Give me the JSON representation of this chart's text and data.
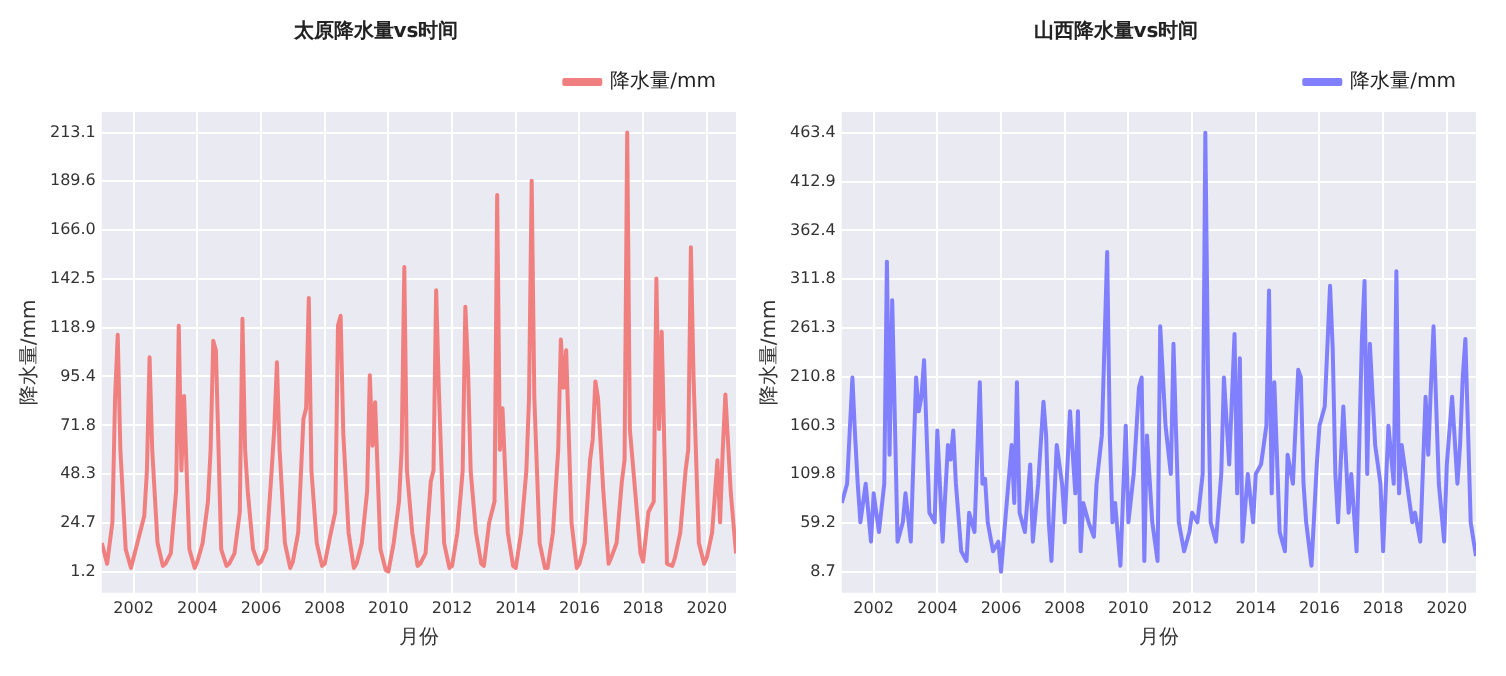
{
  "chart_data": [
    {
      "type": "line",
      "title": "太原降水量vs时间",
      "xlabel": "月份",
      "ylabel": "降水量/mm",
      "grid": true,
      "legend": "top right",
      "xlim": [
        "2001-01",
        "2020-12"
      ],
      "xticks": [
        "2002",
        "2004",
        "2006",
        "2008",
        "2010",
        "2012",
        "2014",
        "2016",
        "2018",
        "2020"
      ],
      "ylim": [
        -9,
        223
      ],
      "yticks": [
        1.2,
        24.7,
        48.3,
        71.8,
        95.4,
        118.9,
        142.5,
        {
          "value": 166,
          "label": "166.0"
        },
        189.6,
        213.1
      ],
      "x": [
        "2001-01",
        "2001-03",
        "2001-05",
        "2001-06",
        "2001-07",
        "2001-08",
        "2001-10",
        "2001-12",
        "2002-01",
        "2002-03",
        "2002-05",
        "2002-06",
        "2002-07",
        "2002-08",
        "2002-10",
        "2002-12",
        "2003-01",
        "2003-03",
        "2003-05",
        "2003-06",
        "2003-07",
        "2003-08",
        "2003-10",
        "2003-12",
        "2004-01",
        "2004-03",
        "2004-05",
        "2004-06",
        "2004-07",
        "2004-08",
        "2004-10",
        "2004-12",
        "2005-01",
        "2005-03",
        "2005-05",
        "2005-06",
        "2005-07",
        "2005-08",
        "2005-10",
        "2005-12",
        "2006-01",
        "2006-03",
        "2006-05",
        "2006-06",
        "2006-07",
        "2006-08",
        "2006-10",
        "2006-12",
        "2007-01",
        "2007-03",
        "2007-05",
        "2007-06",
        "2007-07",
        "2007-08",
        "2007-10",
        "2007-12",
        "2008-01",
        "2008-03",
        "2008-05",
        "2008-06",
        "2008-07",
        "2008-08",
        "2008-10",
        "2008-12",
        "2009-01",
        "2009-03",
        "2009-05",
        "2009-06",
        "2009-07",
        "2009-08",
        "2009-10",
        "2009-12",
        "2010-01",
        "2010-03",
        "2010-05",
        "2010-06",
        "2010-07",
        "2010-08",
        "2010-10",
        "2010-12",
        "2011-01",
        "2011-03",
        "2011-05",
        "2011-06",
        "2011-07",
        "2011-08",
        "2011-10",
        "2011-12",
        "2012-01",
        "2012-03",
        "2012-05",
        "2012-06",
        "2012-07",
        "2012-08",
        "2012-10",
        "2012-12",
        "2013-01",
        "2013-03",
        "2013-05",
        "2013-06",
        "2013-07",
        "2013-08",
        "2013-10",
        "2013-12",
        "2014-01",
        "2014-03",
        "2014-05",
        "2014-06",
        "2014-07",
        "2014-08",
        "2014-10",
        "2014-12",
        "2015-01",
        "2015-03",
        "2015-05",
        "2015-06",
        "2015-07",
        "2015-08",
        "2015-10",
        "2015-12",
        "2016-01",
        "2016-03",
        "2016-05",
        "2016-06",
        "2016-07",
        "2016-08",
        "2016-10",
        "2016-12",
        "2017-01",
        "2017-03",
        "2017-05",
        "2017-06",
        "2017-07",
        "2017-08",
        "2017-10",
        "2017-12",
        "2018-01",
        "2018-03",
        "2018-05",
        "2018-06",
        "2018-07",
        "2018-08",
        "2018-10",
        "2018-12",
        "2019-01",
        "2019-03",
        "2019-05",
        "2019-06",
        "2019-07",
        "2019-08",
        "2019-10",
        "2019-12",
        "2020-01",
        "2020-03",
        "2020-05",
        "2020-06",
        "2020-07",
        "2020-08",
        "2020-10",
        "2020-12"
      ],
      "series": [
        {
          "name": "降水量/mm",
          "color": "#f08080",
          "values": [
            15,
            5,
            25,
            85,
            115.5,
            60,
            12,
            3,
            8,
            18,
            28,
            50,
            104.6,
            60,
            15,
            4,
            5,
            10,
            40,
            119.8,
            50,
            86,
            12,
            3,
            6,
            15,
            35,
            60,
            112.6,
            108,
            12,
            4,
            5,
            10,
            30,
            123.2,
            60,
            40,
            12,
            5,
            6,
            12,
            50,
            70,
            102.3,
            60,
            15,
            3,
            6,
            20,
            75,
            80,
            133.3,
            50,
            15,
            4,
            5,
            18,
            30,
            120,
            124.7,
            68,
            20,
            3,
            5,
            15,
            40,
            96,
            62,
            83,
            12,
            2,
            1.2,
            15,
            35,
            60,
            148.2,
            50,
            20,
            4,
            5,
            10,
            45,
            50,
            137,
            90,
            15,
            3,
            4,
            20,
            50,
            129,
            100,
            50,
            20,
            5,
            4,
            25,
            35,
            183,
            60,
            80,
            20,
            4,
            3,
            20,
            50,
            85,
            189.8,
            85,
            15,
            3,
            3,
            20,
            60,
            113.2,
            90,
            108,
            25,
            3,
            5,
            15,
            55,
            65,
            93,
            85,
            40,
            5,
            8,
            15,
            45,
            55,
            213.1,
            70,
            40,
            10,
            6,
            30,
            35,
            142.7,
            70,
            117,
            5,
            4,
            8,
            20,
            50,
            60,
            157.7,
            95,
            15,
            5,
            8,
            20,
            55,
            25,
            60,
            86.7,
            40,
            10
          ]
        }
      ]
    },
    {
      "type": "line",
      "title": "山西降水量vs时间",
      "xlabel": "月份",
      "ylabel": "降水量/mm",
      "grid": true,
      "legend": "top right",
      "xlim": [
        "2001-01",
        "2020-12"
      ],
      "xticks": [
        "2002",
        "2004",
        "2006",
        "2008",
        "2010",
        "2012",
        "2014",
        "2016",
        "2018",
        "2020"
      ],
      "ylim": [
        -13,
        485
      ],
      "yticks": [
        8.7,
        59.2,
        109.8,
        160.3,
        210.8,
        261.3,
        311.8,
        362.4,
        412.9,
        463.4
      ],
      "x": [
        "2001-01",
        "2001-03",
        "2001-05",
        "2001-06",
        "2001-07",
        "2001-08",
        "2001-10",
        "2001-12",
        "2002-01",
        "2002-03",
        "2002-05",
        "2002-06",
        "2002-07",
        "2002-08",
        "2002-10",
        "2002-12",
        "2003-01",
        "2003-03",
        "2003-05",
        "2003-06",
        "2003-07",
        "2003-08",
        "2003-10",
        "2003-12",
        "2004-01",
        "2004-03",
        "2004-05",
        "2004-06",
        "2004-07",
        "2004-08",
        "2004-10",
        "2004-12",
        "2005-01",
        "2005-03",
        "2005-05",
        "2005-06",
        "2005-07",
        "2005-08",
        "2005-10",
        "2005-12",
        "2006-01",
        "2006-03",
        "2006-05",
        "2006-06",
        "2006-07",
        "2006-08",
        "2006-10",
        "2006-12",
        "2007-01",
        "2007-03",
        "2007-05",
        "2007-06",
        "2007-07",
        "2007-08",
        "2007-10",
        "2007-12",
        "2008-01",
        "2008-03",
        "2008-05",
        "2008-06",
        "2008-07",
        "2008-08",
        "2008-10",
        "2008-12",
        "2009-01",
        "2009-03",
        "2009-05",
        "2009-06",
        "2009-07",
        "2009-08",
        "2009-10",
        "2009-12",
        "2010-01",
        "2010-03",
        "2010-05",
        "2010-06",
        "2010-07",
        "2010-08",
        "2010-10",
        "2010-12",
        "2011-01",
        "2011-03",
        "2011-05",
        "2011-06",
        "2011-07",
        "2011-08",
        "2011-10",
        "2011-12",
        "2012-01",
        "2012-03",
        "2012-05",
        "2012-06",
        "2012-07",
        "2012-08",
        "2012-10",
        "2012-12",
        "2013-01",
        "2013-03",
        "2013-05",
        "2013-06",
        "2013-07",
        "2013-08",
        "2013-10",
        "2013-12",
        "2014-01",
        "2014-03",
        "2014-05",
        "2014-06",
        "2014-07",
        "2014-08",
        "2014-10",
        "2014-12",
        "2015-01",
        "2015-03",
        "2015-05",
        "2015-06",
        "2015-07",
        "2015-08",
        "2015-10",
        "2015-12",
        "2016-01",
        "2016-03",
        "2016-05",
        "2016-06",
        "2016-07",
        "2016-08",
        "2016-10",
        "2016-12",
        "2017-01",
        "2017-03",
        "2017-05",
        "2017-06",
        "2017-07",
        "2017-08",
        "2017-10",
        "2017-12",
        "2018-01",
        "2018-03",
        "2018-05",
        "2018-06",
        "2018-07",
        "2018-08",
        "2018-10",
        "2018-12",
        "2019-01",
        "2019-03",
        "2019-05",
        "2019-06",
        "2019-07",
        "2019-08",
        "2019-10",
        "2019-12",
        "2020-01",
        "2020-03",
        "2020-05",
        "2020-06",
        "2020-07",
        "2020-08",
        "2020-10",
        "2020-12"
      ],
      "series": [
        {
          "name": "降水量/mm",
          "color": "#8080ff",
          "values": [
            80,
            100,
            210,
            150,
            100,
            60,
            100,
            40,
            90,
            50,
            100,
            330,
            130,
            290,
            40,
            60,
            90,
            40,
            210,
            175,
            190,
            228,
            70,
            60,
            155,
            40,
            140,
            125,
            155,
            100,
            30,
            20,
            70,
            50,
            205,
            100,
            105,
            60,
            30,
            40,
            8.7,
            75,
            140,
            80,
            205,
            70,
            50,
            120,
            40,
            100,
            185,
            150,
            60,
            20,
            140,
            100,
            60,
            175,
            90,
            175,
            30,
            80,
            60,
            45,
            100,
            150,
            340,
            150,
            60,
            80,
            15,
            160,
            60,
            110,
            200,
            210,
            20,
            150,
            60,
            20,
            263,
            160,
            110,
            245,
            150,
            60,
            30,
            50,
            70,
            60,
            110,
            463.4,
            215,
            60,
            40,
            110,
            210,
            120,
            255,
            90,
            230,
            40,
            110,
            60,
            110,
            120,
            160,
            300,
            90,
            205,
            50,
            30,
            130,
            100,
            218,
            210,
            100,
            60,
            15,
            120,
            160,
            180,
            305,
            240,
            110,
            60,
            180,
            70,
            110,
            30,
            250,
            310,
            110,
            245,
            140,
            100,
            30,
            160,
            100,
            320,
            90,
            140,
            100,
            60,
            70,
            40,
            190,
            130,
            200,
            263,
            100,
            40,
            120,
            190,
            100,
            140,
            210,
            250,
            60,
            25
          ]
        }
      ]
    }
  ]
}
